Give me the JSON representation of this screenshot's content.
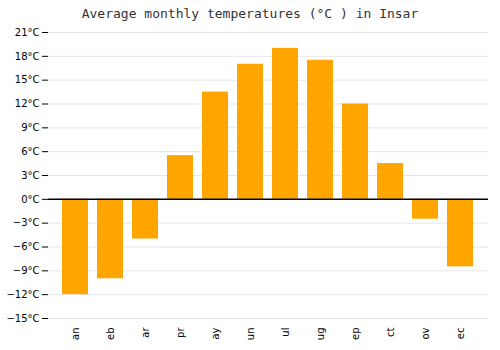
{
  "chart_data": {
    "type": "bar",
    "title": "Average monthly temperatures (°C ) in Insar",
    "categories": [
      "an",
      "eb",
      "ar",
      "pr",
      "ay",
      "un",
      "ul",
      "ug",
      "ep",
      "ct",
      "ov",
      "ec"
    ],
    "values": [
      -12,
      -10,
      -5,
      5.5,
      13.5,
      17,
      19,
      17.5,
      12,
      4.5,
      -2.5,
      -8.5
    ],
    "color": "#FFA500",
    "ylim": [
      -15,
      21
    ],
    "yticks": [
      {
        "value": -15,
        "label": "−15°C"
      },
      {
        "value": -12,
        "label": "−12°C"
      },
      {
        "value": -9,
        "label": "−9°C"
      },
      {
        "value": -6,
        "label": "−6°C"
      },
      {
        "value": -3,
        "label": "−3°C"
      },
      {
        "value": 0,
        "label": "0°C"
      },
      {
        "value": 3,
        "label": "3°C"
      },
      {
        "value": 6,
        "label": "6°C"
      },
      {
        "value": 9,
        "label": "9°C"
      },
      {
        "value": 12,
        "label": "12°C"
      },
      {
        "value": 15,
        "label": "15°C"
      },
      {
        "value": 18,
        "label": "18°C"
      },
      {
        "value": 21,
        "label": "21°C"
      }
    ],
    "grid": true
  }
}
